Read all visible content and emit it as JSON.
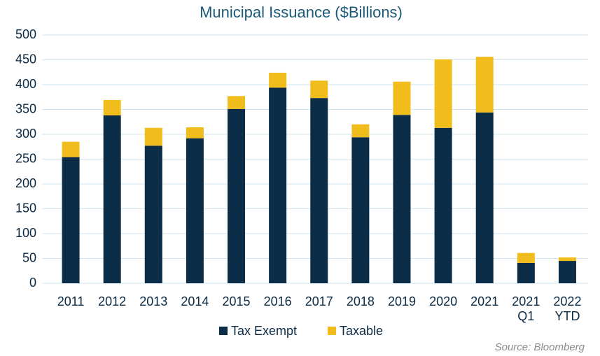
{
  "chart_data": {
    "type": "bar",
    "stacked": true,
    "title": "Municipal Issuance ($Billions)",
    "categories": [
      "2011",
      "2012",
      "2013",
      "2014",
      "2015",
      "2016",
      "2017",
      "2018",
      "2019",
      "2020",
      "2021",
      "2021\nQ1",
      "2022\nYTD"
    ],
    "series": [
      {
        "name": "Tax Exempt",
        "color": "#0b2d48",
        "values": [
          254,
          338,
          277,
          292,
          351,
          394,
          373,
          294,
          339,
          313,
          344,
          41,
          45
        ]
      },
      {
        "name": "Taxable",
        "color": "#f0bd1c",
        "values": [
          31,
          31,
          36,
          22,
          26,
          30,
          35,
          26,
          67,
          138,
          112,
          20,
          7
        ]
      }
    ],
    "ylim": [
      0,
      500
    ],
    "yticks": [
      0,
      50,
      100,
      150,
      200,
      250,
      300,
      350,
      400,
      450,
      500
    ],
    "grid": true,
    "legend": "bottom",
    "source": "Source: Bloomberg"
  }
}
